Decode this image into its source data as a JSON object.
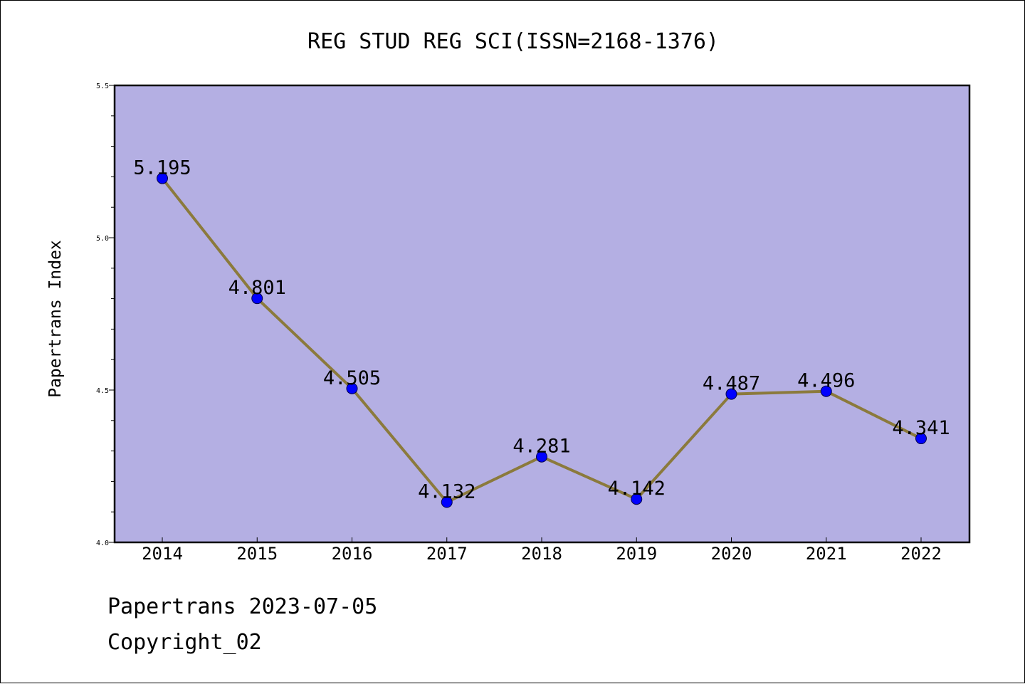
{
  "chart_data": {
    "type": "line",
    "title": "REG STUD REG SCI(ISSN=2168-1376)",
    "ylabel": "Papertrans Index",
    "xlabel": "",
    "x": [
      "2014",
      "2015",
      "2016",
      "2017",
      "2018",
      "2019",
      "2020",
      "2021",
      "2022"
    ],
    "series": [
      {
        "values": [
          5.195,
          4.801,
          4.505,
          4.132,
          4.281,
          4.142,
          4.487,
          4.496,
          4.341
        ],
        "labels": [
          "5.195",
          "4.801",
          "4.505",
          "4.132",
          "4.281",
          "4.142",
          "4.487",
          "4.496",
          "4.341"
        ]
      }
    ],
    "ylim": [
      4.0,
      5.5
    ],
    "yticks": [
      "4.0",
      "4.5",
      "5.0",
      "5.5"
    ],
    "grid": false,
    "colors": {
      "plot_background": "#b4afe3",
      "line": "#8b7a3c",
      "marker": "#0000ff",
      "axis": "#000000"
    }
  },
  "footer": {
    "date_line": "Papertrans 2023-07-05",
    "copyright_line": "Copyright_02"
  }
}
